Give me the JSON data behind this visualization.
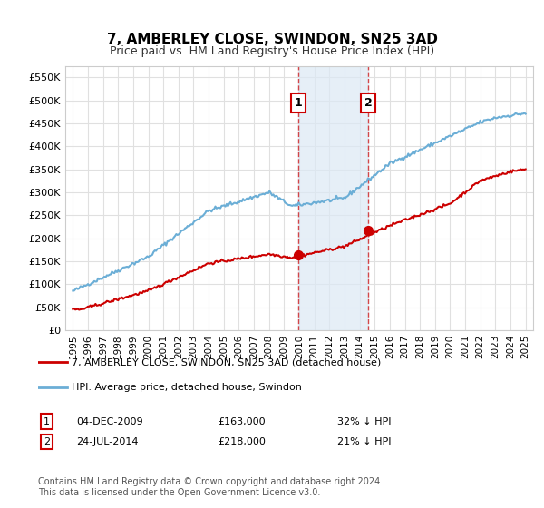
{
  "title": "7, AMBERLEY CLOSE, SWINDON, SN25 3AD",
  "subtitle": "Price paid vs. HM Land Registry's House Price Index (HPI)",
  "xlabel": "",
  "ylabel": "",
  "ylim": [
    0,
    575000
  ],
  "yticks": [
    0,
    50000,
    100000,
    150000,
    200000,
    250000,
    300000,
    350000,
    400000,
    450000,
    500000,
    550000
  ],
  "ytick_labels": [
    "£0",
    "£50K",
    "£100K",
    "£150K",
    "£200K",
    "£250K",
    "£300K",
    "£350K",
    "£400K",
    "£450K",
    "£500K",
    "£550K"
  ],
  "hpi_color": "#6baed6",
  "price_color": "#cc0000",
  "sale1_date_num": 2009.92,
  "sale2_date_num": 2014.56,
  "sale1_price": 163000,
  "sale2_price": 218000,
  "background_color": "#ffffff",
  "grid_color": "#e0e0e0",
  "shade_color": "#dce9f5",
  "legend_label_red": "7, AMBERLEY CLOSE, SWINDON, SN25 3AD (detached house)",
  "legend_label_blue": "HPI: Average price, detached house, Swindon",
  "table_row1": [
    "1",
    "04-DEC-2009",
    "£163,000",
    "32% ↓ HPI"
  ],
  "table_row2": [
    "2",
    "24-JUL-2014",
    "£218,000",
    "21% ↓ HPI"
  ],
  "footnote": "Contains HM Land Registry data © Crown copyright and database right 2024.\nThis data is licensed under the Open Government Licence v3.0."
}
